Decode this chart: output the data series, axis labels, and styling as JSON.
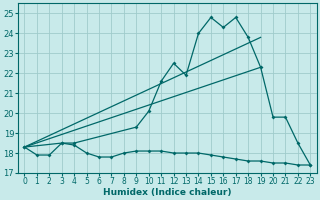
{
  "xlabel": "Humidex (Indice chaleur)",
  "background_color": "#c8eaea",
  "grid_color": "#a0cccc",
  "line_color": "#006868",
  "xlim": [
    -0.5,
    23.5
  ],
  "ylim": [
    17.0,
    25.5
  ],
  "yticks": [
    17,
    18,
    19,
    20,
    21,
    22,
    23,
    24,
    25
  ],
  "xticks": [
    0,
    1,
    2,
    3,
    4,
    5,
    6,
    7,
    8,
    9,
    10,
    11,
    12,
    13,
    14,
    15,
    16,
    17,
    18,
    19,
    20,
    21,
    22,
    23
  ],
  "series_flat_x": [
    0,
    1,
    2,
    3,
    4,
    5,
    6,
    7,
    8,
    9,
    10,
    11,
    12,
    13,
    14,
    15,
    16,
    17,
    18,
    19,
    20,
    21,
    22,
    23
  ],
  "series_flat_y": [
    18.3,
    17.9,
    17.9,
    18.5,
    18.4,
    18.0,
    17.8,
    17.8,
    18.0,
    18.1,
    18.1,
    18.1,
    18.0,
    18.0,
    18.0,
    17.9,
    17.8,
    17.7,
    17.6,
    17.6,
    17.5,
    17.5,
    17.4,
    17.4
  ],
  "series_jagged_x": [
    0,
    3,
    4,
    9,
    10,
    11,
    12,
    13,
    14,
    15,
    16,
    17,
    18,
    19,
    20,
    21,
    22,
    23
  ],
  "series_jagged_y": [
    18.3,
    18.5,
    18.5,
    19.3,
    20.1,
    21.6,
    22.5,
    21.9,
    24.0,
    24.8,
    24.3,
    24.8,
    23.8,
    22.3,
    19.8,
    19.8,
    18.5,
    17.4
  ],
  "trend1_x": [
    0,
    19
  ],
  "trend1_y": [
    18.3,
    22.3
  ],
  "trend2_x": [
    0,
    19
  ],
  "trend2_y": [
    18.3,
    23.8
  ]
}
